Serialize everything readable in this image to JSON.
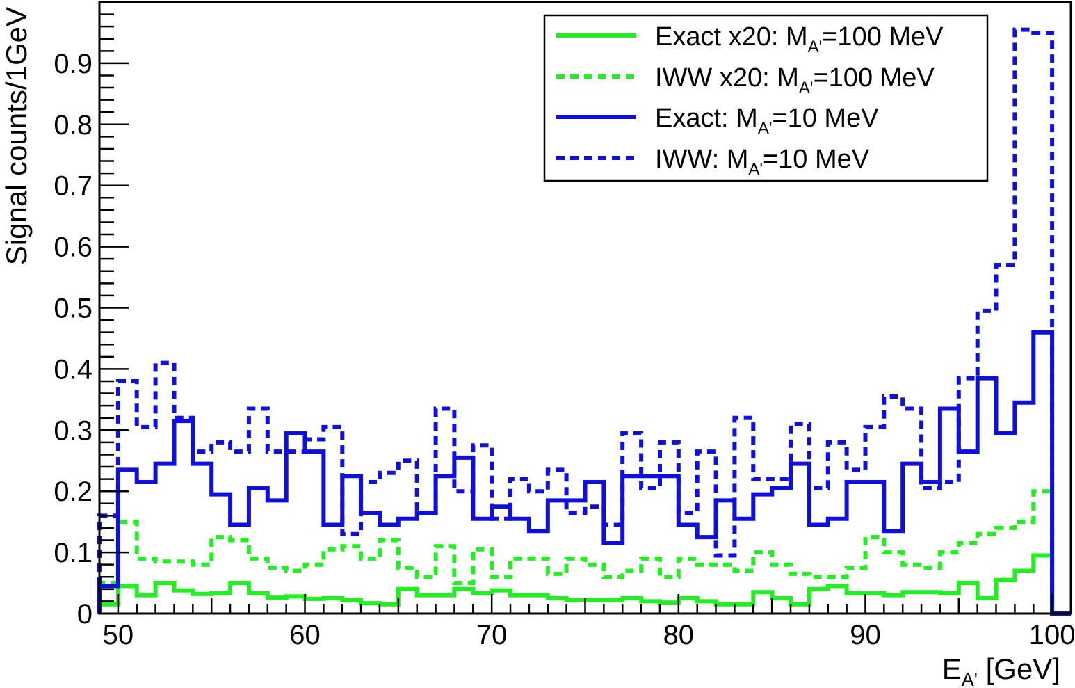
{
  "chart_data": {
    "type": "line",
    "step": true,
    "xlabel": {
      "base": "E",
      "sub": "A'",
      "suffix": " [GeV]"
    },
    "ylabel": "Signal counts/1GeV",
    "xlim": [
      49,
      101
    ],
    "ylim": [
      0,
      1.0
    ],
    "bin_edges": [
      49,
      50,
      51,
      52,
      53,
      54,
      55,
      56,
      57,
      58,
      59,
      60,
      61,
      62,
      63,
      64,
      65,
      66,
      67,
      68,
      69,
      70,
      71,
      72,
      73,
      74,
      75,
      76,
      77,
      78,
      79,
      80,
      81,
      82,
      83,
      84,
      85,
      86,
      87,
      88,
      89,
      90,
      91,
      92,
      93,
      94,
      95,
      96,
      97,
      98,
      99,
      100,
      101
    ],
    "x_ticks": [
      50,
      60,
      70,
      80,
      90,
      100
    ],
    "y_ticks": [
      0,
      0.1,
      0.2,
      0.3,
      0.4,
      0.5,
      0.6,
      0.7,
      0.8,
      0.9
    ],
    "y_tick_labels": [
      "0",
      "0.1",
      "0.2",
      "0.3",
      "0.4",
      "0.5",
      "0.6",
      "0.7",
      "0.8",
      "0.9"
    ],
    "legend_position": "top-right",
    "series": [
      {
        "legend": {
          "prefix": "Exact x20: M",
          "sub": "A'",
          "suffix": "=100 MeV"
        },
        "color": "#22ee22",
        "style": "solid",
        "values": [
          0.015,
          0.045,
          0.03,
          0.05,
          0.038,
          0.032,
          0.033,
          0.05,
          0.033,
          0.026,
          0.028,
          0.024,
          0.025,
          0.022,
          0.017,
          0.015,
          0.04,
          0.03,
          0.03,
          0.04,
          0.033,
          0.038,
          0.03,
          0.03,
          0.025,
          0.022,
          0.022,
          0.022,
          0.025,
          0.02,
          0.018,
          0.025,
          0.02,
          0.015,
          0.015,
          0.035,
          0.025,
          0.015,
          0.04,
          0.045,
          0.033,
          0.033,
          0.03,
          0.035,
          0.035,
          0.033,
          0.05,
          0.025,
          0.055,
          0.07,
          0.095,
          0.0
        ]
      },
      {
        "legend": {
          "prefix": "IWW x20: M",
          "sub": "A'",
          "suffix": "=100 MeV"
        },
        "color": "#22ee22",
        "style": "dashed",
        "values": [
          0.05,
          0.15,
          0.09,
          0.085,
          0.085,
          0.08,
          0.125,
          0.12,
          0.09,
          0.075,
          0.07,
          0.08,
          0.105,
          0.11,
          0.09,
          0.12,
          0.075,
          0.06,
          0.11,
          0.05,
          0.105,
          0.06,
          0.09,
          0.09,
          0.065,
          0.09,
          0.08,
          0.06,
          0.07,
          0.09,
          0.06,
          0.09,
          0.08,
          0.08,
          0.07,
          0.1,
          0.08,
          0.065,
          0.06,
          0.06,
          0.075,
          0.125,
          0.1,
          0.08,
          0.075,
          0.1,
          0.115,
          0.13,
          0.14,
          0.15,
          0.2,
          0.0
        ]
      },
      {
        "legend": {
          "prefix": "Exact: M",
          "sub": "A'",
          "suffix": "=10 MeV"
        },
        "color": "#1010dd",
        "style": "solid",
        "values": [
          0.045,
          0.235,
          0.215,
          0.245,
          0.315,
          0.245,
          0.195,
          0.145,
          0.205,
          0.185,
          0.295,
          0.265,
          0.145,
          0.225,
          0.165,
          0.145,
          0.155,
          0.165,
          0.225,
          0.255,
          0.155,
          0.175,
          0.155,
          0.135,
          0.185,
          0.185,
          0.215,
          0.115,
          0.225,
          0.225,
          0.225,
          0.145,
          0.125,
          0.185,
          0.155,
          0.195,
          0.205,
          0.245,
          0.145,
          0.155,
          0.215,
          0.215,
          0.135,
          0.245,
          0.215,
          0.335,
          0.265,
          0.385,
          0.295,
          0.345,
          0.46,
          0.0
        ]
      },
      {
        "legend": {
          "prefix": "IWW: M",
          "sub": "A'",
          "suffix": "=10 MeV"
        },
        "color": "#1010dd",
        "style": "dashed",
        "values": [
          0.16,
          0.38,
          0.305,
          0.41,
          0.32,
          0.265,
          0.28,
          0.265,
          0.335,
          0.265,
          0.265,
          0.285,
          0.305,
          0.13,
          0.215,
          0.23,
          0.25,
          0.165,
          0.335,
          0.2,
          0.275,
          0.155,
          0.22,
          0.2,
          0.235,
          0.165,
          0.175,
          0.145,
          0.295,
          0.205,
          0.28,
          0.165,
          0.265,
          0.095,
          0.32,
          0.22,
          0.22,
          0.31,
          0.205,
          0.28,
          0.235,
          0.305,
          0.355,
          0.335,
          0.205,
          0.215,
          0.385,
          0.495,
          0.57,
          0.955,
          0.95,
          0.0
        ]
      }
    ]
  }
}
